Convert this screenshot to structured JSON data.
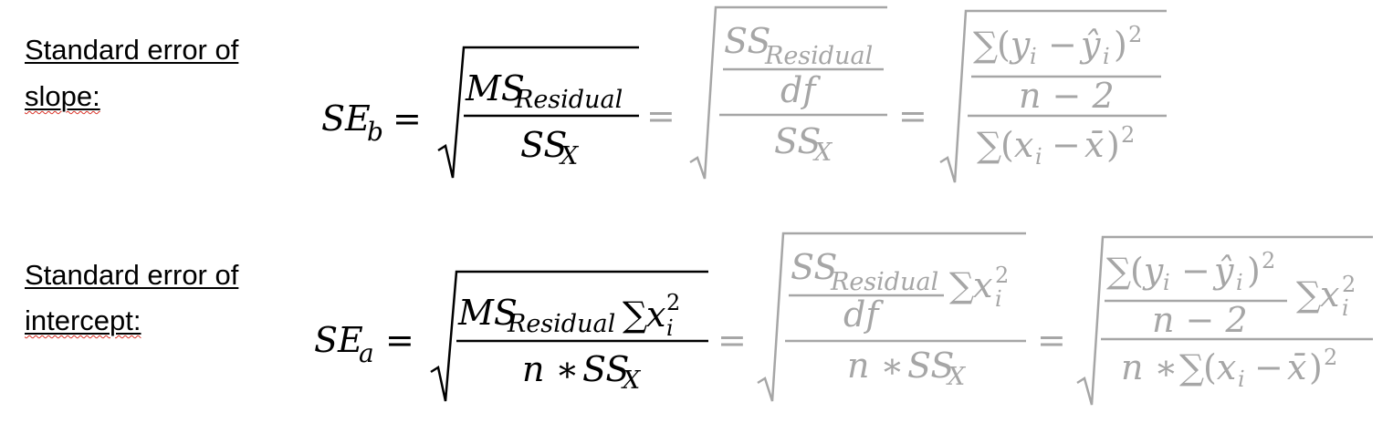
{
  "slope": {
    "label_line1": "Standard error of",
    "label_line2": "slope:",
    "lhs_base": "SE",
    "lhs_sub": "b",
    "eq": "=",
    "ms": "MS",
    "ss": "SS",
    "residual": "Residual",
    "x_sub": "X",
    "df": "df",
    "sum": "∑",
    "resid_sq": "(y",
    "i": "i",
    "minus": "−",
    "yhat": "ŷ",
    "close_sq": ")",
    "sq": "2",
    "n_minus_2": "n − 2",
    "x_dev_open": "(x",
    "xbar": "x̄"
  },
  "intercept": {
    "label_line1": "Standard error of",
    "label_line2": "intercept:",
    "lhs_base": "SE",
    "lhs_sub": "a",
    "x_i": "x",
    "n_times": "n ∗ "
  },
  "colors": {
    "primary": "#000000",
    "secondary": "#a6a6a6",
    "spell_underline": "#d93025"
  }
}
